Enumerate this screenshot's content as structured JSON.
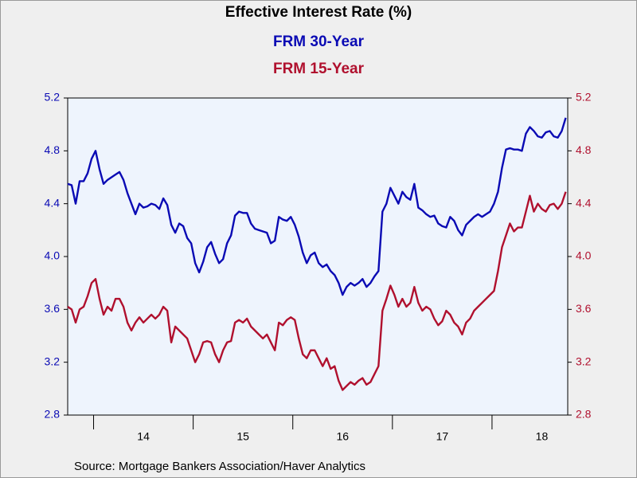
{
  "chart_data": {
    "type": "line",
    "title": "Effective Interest Rate (%)",
    "source": "Source:  Mortgage Bankers Association/Haver Analytics",
    "x": [
      2013.74,
      2013.78,
      2013.82,
      2013.86,
      2013.9,
      2013.94,
      2013.98,
      2014.02,
      2014.06,
      2014.1,
      2014.14,
      2014.18,
      2014.22,
      2014.26,
      2014.3,
      2014.34,
      2014.38,
      2014.42,
      2014.46,
      2014.5,
      2014.54,
      2014.58,
      2014.62,
      2014.66,
      2014.7,
      2014.74,
      2014.78,
      2014.82,
      2014.86,
      2014.9,
      2014.94,
      2014.98,
      2015.02,
      2015.06,
      2015.1,
      2015.14,
      2015.18,
      2015.22,
      2015.26,
      2015.3,
      2015.34,
      2015.38,
      2015.42,
      2015.46,
      2015.5,
      2015.54,
      2015.58,
      2015.62,
      2015.66,
      2015.7,
      2015.74,
      2015.78,
      2015.82,
      2015.86,
      2015.9,
      2015.94,
      2015.98,
      2016.02,
      2016.06,
      2016.1,
      2016.14,
      2016.18,
      2016.22,
      2016.26,
      2016.3,
      2016.34,
      2016.38,
      2016.42,
      2016.46,
      2016.5,
      2016.54,
      2016.58,
      2016.62,
      2016.66,
      2016.7,
      2016.74,
      2016.78,
      2016.82,
      2016.86,
      2016.9,
      2016.94,
      2016.98,
      2017.02,
      2017.06,
      2017.1,
      2017.14,
      2017.18,
      2017.22,
      2017.26,
      2017.3,
      2017.34,
      2017.38,
      2017.42,
      2017.46,
      2017.5,
      2017.54,
      2017.58,
      2017.62,
      2017.66,
      2017.7,
      2017.74,
      2017.78,
      2017.82,
      2017.86,
      2017.9,
      2017.94,
      2017.98,
      2018.02,
      2018.06,
      2018.1,
      2018.14,
      2018.18,
      2018.22,
      2018.26,
      2018.3,
      2018.34,
      2018.38,
      2018.42,
      2018.46,
      2018.5,
      2018.54,
      2018.58,
      2018.62,
      2018.66,
      2018.7,
      2018.74
    ],
    "series": [
      {
        "name": "FRM 30-Year",
        "color": "#0a0ab4",
        "axis": "y",
        "values": [
          4.55,
          4.54,
          4.4,
          4.57,
          4.57,
          4.63,
          4.74,
          4.8,
          4.66,
          4.55,
          4.58,
          4.6,
          4.62,
          4.64,
          4.58,
          4.48,
          4.4,
          4.32,
          4.4,
          4.37,
          4.38,
          4.4,
          4.39,
          4.36,
          4.44,
          4.39,
          4.24,
          4.18,
          4.25,
          4.23,
          4.14,
          4.1,
          3.95,
          3.88,
          3.96,
          4.07,
          4.11,
          4.02,
          3.95,
          3.98,
          4.1,
          4.16,
          4.31,
          4.34,
          4.33,
          4.33,
          4.25,
          4.21,
          4.2,
          4.19,
          4.18,
          4.1,
          4.12,
          4.3,
          4.28,
          4.27,
          4.3,
          4.24,
          4.15,
          4.03,
          3.95,
          4.01,
          4.03,
          3.95,
          3.92,
          3.94,
          3.89,
          3.86,
          3.8,
          3.71,
          3.77,
          3.8,
          3.78,
          3.8,
          3.83,
          3.77,
          3.8,
          3.85,
          3.89,
          4.34,
          4.4,
          4.52,
          4.46,
          4.4,
          4.49,
          4.45,
          4.43,
          4.55,
          4.37,
          4.35,
          4.32,
          4.3,
          4.31,
          4.25,
          4.23,
          4.22,
          4.3,
          4.27,
          4.2,
          4.16,
          4.24,
          4.27,
          4.3,
          4.32,
          4.3,
          4.32,
          4.34,
          4.4,
          4.49,
          4.67,
          4.81,
          4.82,
          4.81,
          4.81,
          4.8,
          4.93,
          4.98,
          4.95,
          4.91,
          4.9,
          4.94,
          4.95,
          4.91,
          4.9,
          4.95,
          5.05
        ]
      },
      {
        "name": "FRM 15-Year",
        "color": "#b0102e",
        "axis": "y2",
        "values": [
          3.62,
          3.6,
          3.5,
          3.6,
          3.62,
          3.7,
          3.8,
          3.83,
          3.68,
          3.56,
          3.62,
          3.59,
          3.68,
          3.68,
          3.62,
          3.5,
          3.44,
          3.5,
          3.54,
          3.5,
          3.53,
          3.56,
          3.53,
          3.56,
          3.62,
          3.59,
          3.35,
          3.47,
          3.44,
          3.41,
          3.38,
          3.29,
          3.2,
          3.26,
          3.35,
          3.36,
          3.35,
          3.26,
          3.2,
          3.29,
          3.35,
          3.36,
          3.5,
          3.52,
          3.5,
          3.53,
          3.47,
          3.44,
          3.41,
          3.38,
          3.41,
          3.35,
          3.29,
          3.5,
          3.48,
          3.52,
          3.54,
          3.52,
          3.38,
          3.26,
          3.23,
          3.29,
          3.29,
          3.23,
          3.17,
          3.23,
          3.15,
          3.17,
          3.06,
          2.99,
          3.02,
          3.05,
          3.03,
          3.06,
          3.08,
          3.03,
          3.05,
          3.11,
          3.17,
          3.59,
          3.68,
          3.78,
          3.71,
          3.62,
          3.68,
          3.62,
          3.65,
          3.77,
          3.65,
          3.59,
          3.62,
          3.6,
          3.53,
          3.48,
          3.51,
          3.59,
          3.56,
          3.5,
          3.47,
          3.41,
          3.5,
          3.53,
          3.59,
          3.62,
          3.65,
          3.68,
          3.71,
          3.74,
          3.89,
          4.07,
          4.16,
          4.25,
          4.19,
          4.22,
          4.22,
          4.34,
          4.46,
          4.34,
          4.4,
          4.36,
          4.34,
          4.39,
          4.4,
          4.36,
          4.4,
          4.49
        ]
      }
    ],
    "xlim": [
      2013.74,
      2018.76
    ],
    "xticks": [
      {
        "value": 2014.5,
        "label": "14"
      },
      {
        "value": 2015.5,
        "label": "15"
      },
      {
        "value": 2016.5,
        "label": "16"
      },
      {
        "value": 2017.5,
        "label": "17"
      },
      {
        "value": 2018.5,
        "label": "18"
      }
    ],
    "ylim": [
      2.8,
      5.2
    ],
    "yticks": [
      2.8,
      3.2,
      3.6,
      {
        "value": 4,
        "label": "4.0"
      },
      4.4,
      4.8,
      5.2
    ],
    "y2lim": [
      2.8,
      5.2
    ],
    "y2ticks": [
      2.8,
      3.2,
      3.6,
      {
        "value": 4,
        "label": "4.0"
      },
      4.4,
      4.8,
      5.2
    ]
  }
}
